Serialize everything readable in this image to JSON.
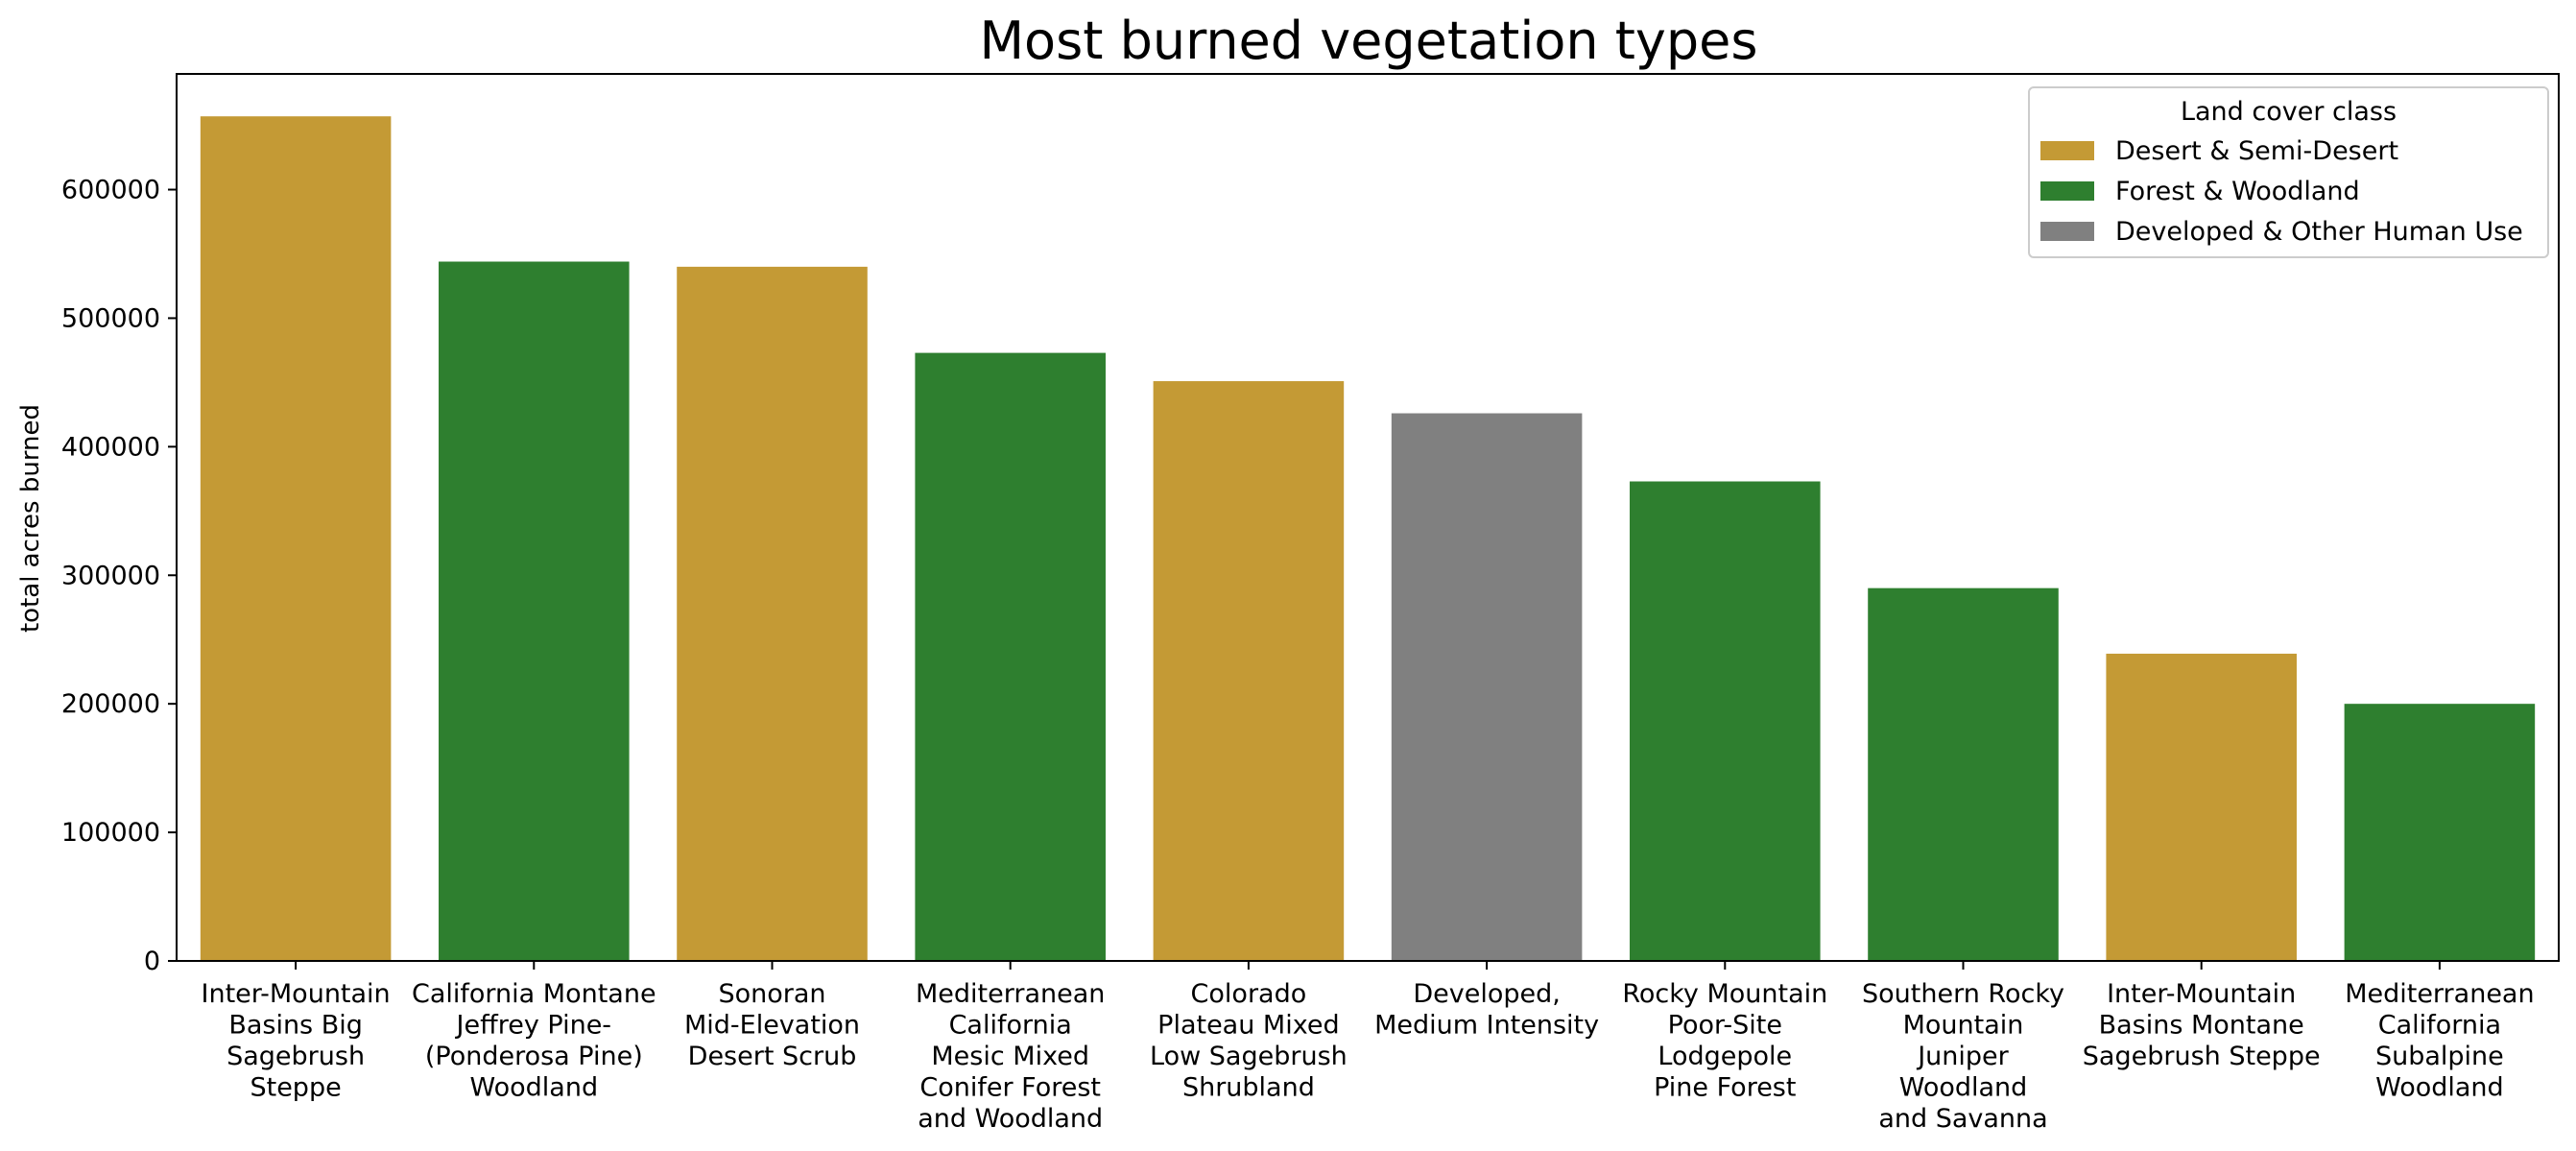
{
  "chart_data": {
    "type": "bar",
    "title": "Most burned vegetation types",
    "xlabel": "",
    "ylabel": "total acres burned",
    "ylim": [
      0,
      690000
    ],
    "yticks": [
      0,
      100000,
      200000,
      300000,
      400000,
      500000,
      600000
    ],
    "ytick_labels": [
      "0",
      "100000",
      "200000",
      "300000",
      "400000",
      "500000",
      "600000"
    ],
    "grid": false,
    "legend": {
      "title": "Land cover class",
      "placement": "top-right",
      "entries": [
        {
          "label": "Desert & Semi-Desert",
          "color": "#c49a35"
        },
        {
          "label": "Forest & Woodland",
          "color": "#2e7f2f"
        },
        {
          "label": "Developed & Other Human Use",
          "color": "#808080"
        }
      ]
    },
    "categories": [
      "Inter-Mountain Basins Big Sagebrush Steppe",
      "California Montane Jeffrey Pine-(Ponderosa Pine) Woodland",
      "Sonoran Mid-Elevation Desert Scrub",
      "Mediterranean California Mesic Mixed Conifer Forest and Woodland",
      "Colorado Plateau Mixed Low Sagebrush Shrubland",
      "Developed, Medium Intensity",
      "Rocky Mountain Poor-Site Lodgepole Pine Forest",
      "Southern Rocky Mountain Juniper Woodland and Savanna",
      "Inter-Mountain Basins Montane Sagebrush Steppe",
      "Mediterranean California Subalpine Woodland"
    ],
    "category_label_lines": [
      [
        "Inter-Mountain",
        "Basins Big",
        "Sagebrush",
        "Steppe"
      ],
      [
        "California Montane",
        "Jeffrey Pine-",
        "(Ponderosa Pine)",
        "Woodland"
      ],
      [
        "Sonoran",
        "Mid-Elevation",
        "Desert Scrub"
      ],
      [
        "Mediterranean",
        "California",
        "Mesic Mixed",
        "Conifer Forest",
        "and Woodland"
      ],
      [
        "Colorado",
        "Plateau Mixed",
        "Low Sagebrush",
        "Shrubland"
      ],
      [
        "Developed,",
        "Medium Intensity"
      ],
      [
        "Rocky Mountain",
        "Poor-Site",
        "Lodgepole",
        "Pine Forest"
      ],
      [
        "Southern Rocky",
        "Mountain",
        "Juniper",
        "Woodland",
        "and Savanna"
      ],
      [
        "Inter-Mountain",
        "Basins Montane",
        "Sagebrush Steppe"
      ],
      [
        "Mediterranean",
        "California",
        "Subalpine",
        "Woodland"
      ]
    ],
    "land_cover_class": [
      "Desert & Semi-Desert",
      "Forest & Woodland",
      "Desert & Semi-Desert",
      "Forest & Woodland",
      "Desert & Semi-Desert",
      "Developed & Other Human Use",
      "Forest & Woodland",
      "Forest & Woodland",
      "Desert & Semi-Desert",
      "Forest & Woodland"
    ],
    "values": [
      657000,
      544000,
      540000,
      473000,
      451000,
      426000,
      373000,
      290000,
      239000,
      200000
    ]
  }
}
